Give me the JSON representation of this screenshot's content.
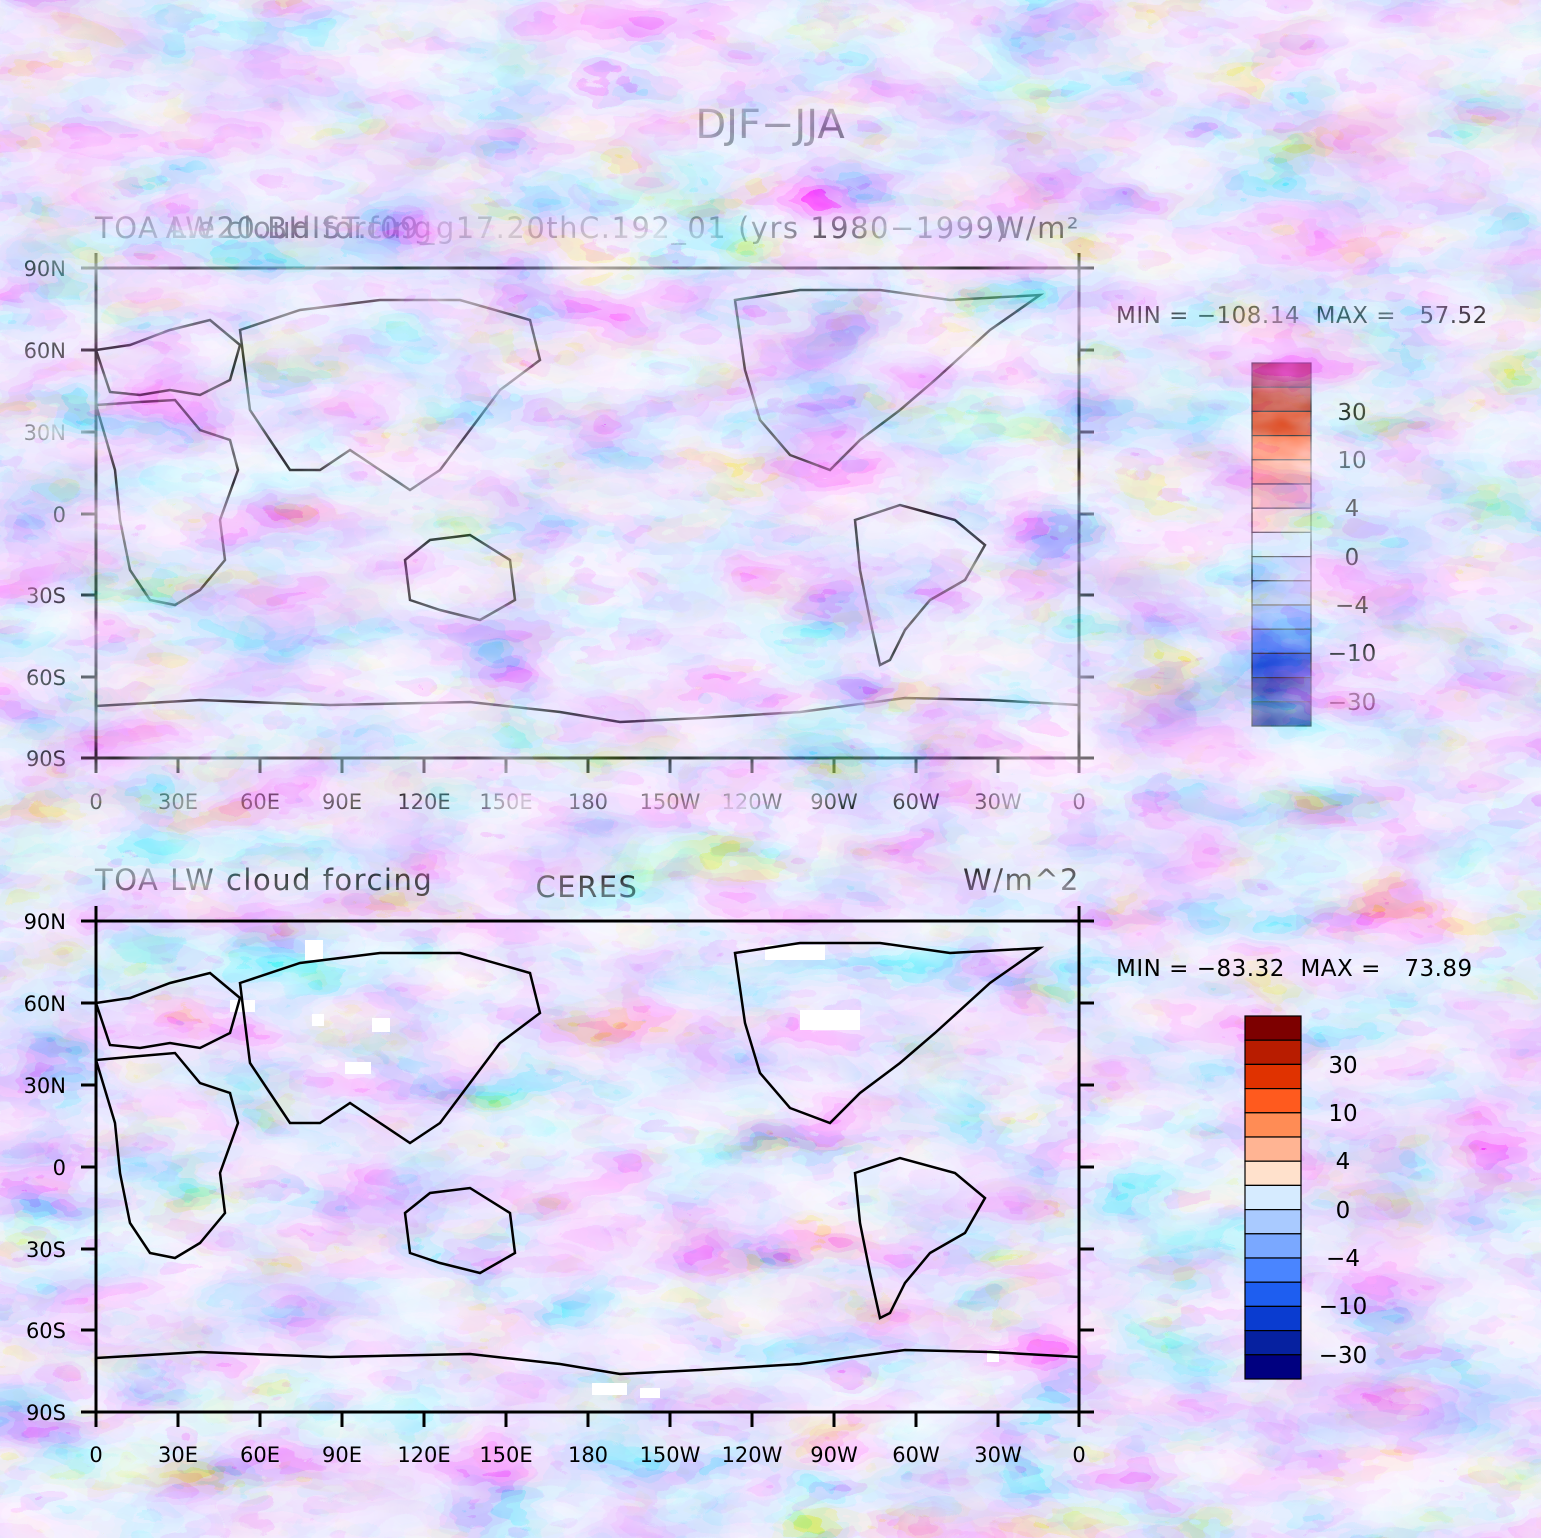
{
  "figure": {
    "title": "DJF−JJA"
  },
  "panels": [
    {
      "left_title": "TOA LW cloud forcing",
      "center_title": "A.e20.BHIST.f09_g17.20thC.192_01 (yrs 1980−1999)",
      "right_title": "W/m²",
      "stats": "MIN = −108.14  MAX =   57.52"
    },
    {
      "left_title": "TOA LW cloud forcing",
      "center_title": "CERES",
      "right_title": "W/m^2",
      "stats": "MIN = −83.32  MAX =   73.89"
    }
  ],
  "colorbar": {
    "labels": [
      "30",
      "10",
      "4",
      "0",
      "−4",
      "−10",
      "−30"
    ],
    "colors": [
      "#7d0000",
      "#b81c00",
      "#e03200",
      "#ff5a1e",
      "#ff8c55",
      "#ffb493",
      "#ffe1cc",
      "#d6ebff",
      "#a9caff",
      "#7aa8ff",
      "#4a85ff",
      "#1e5ef0",
      "#0a3cd0",
      "#0621a0",
      "#000080"
    ]
  },
  "chart_data": [
    {
      "type": "heatmap",
      "title": "TOA LW cloud forcing — A.e20.BHIST.f09_g17.20thC.192_01 (yrs 1980−1999), DJF−JJA",
      "units": "W/m²",
      "x_ticks": [
        "0",
        "30E",
        "60E",
        "90E",
        "120E",
        "150E",
        "180",
        "150W",
        "120W",
        "90W",
        "60W",
        "30W",
        "0"
      ],
      "y_ticks": [
        "90N",
        "60N",
        "30N",
        "0",
        "30S",
        "60S",
        "90S"
      ],
      "xlim": [
        0,
        360
      ],
      "ylim": [
        -90,
        90
      ],
      "min": -108.14,
      "max": 57.52,
      "contour_levels": [
        -40,
        -30,
        -20,
        -10,
        -6,
        -4,
        -2,
        0,
        2,
        4,
        6,
        10,
        20,
        30,
        40
      ]
    },
    {
      "type": "heatmap",
      "title": "TOA LW cloud forcing — CERES, DJF−JJA",
      "units": "W/m^2",
      "x_ticks": [
        "0",
        "30E",
        "60E",
        "90E",
        "120E",
        "150E",
        "180",
        "150W",
        "120W",
        "90W",
        "60W",
        "30W",
        "0"
      ],
      "y_ticks": [
        "90N",
        "60N",
        "30N",
        "0",
        "30S",
        "60S",
        "90S"
      ],
      "xlim": [
        0,
        360
      ],
      "ylim": [
        -90,
        90
      ],
      "min": -83.32,
      "max": 73.89,
      "contour_levels": [
        -40,
        -30,
        -20,
        -10,
        -6,
        -4,
        -2,
        0,
        2,
        4,
        6,
        10,
        20,
        30,
        40
      ]
    }
  ]
}
